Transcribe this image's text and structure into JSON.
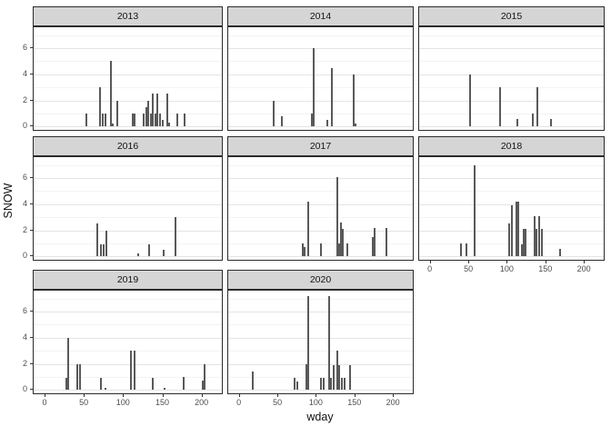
{
  "labels": {
    "x_axis_title": "wday",
    "y_axis_title": "SNOW"
  },
  "colors": {
    "bar": "#595959",
    "strip_background": "#d5d5d5",
    "panel_border": "#2b2b2b",
    "grid_major": "#e4e4e4",
    "grid_minor": "#f3f3f3",
    "tick_text": "#4d4d4d"
  },
  "chart_data": {
    "type": "bar",
    "title": "",
    "xlabel": "wday",
    "ylabel": "SNOW",
    "legend": "none",
    "grid": "horizontal major at 0,2,4,6 and minor at 1,3,5,7; no vertical gridlines",
    "x_ticks": [
      0,
      50,
      100,
      150,
      200
    ],
    "y_ticks": [
      0,
      2,
      4,
      6
    ],
    "xlim": [
      -15,
      227
    ],
    "ylim": [
      -0.4,
      7.6
    ],
    "facet_layout": "3 columns x 3 rows, facet strip on top of each panel, last cell empty",
    "facets": [
      {
        "year": "2013",
        "row": 0,
        "col": 0,
        "bars": [
          [
            52,
            1
          ],
          [
            69,
            3
          ],
          [
            73,
            1
          ],
          [
            76,
            1
          ],
          [
            83.5,
            5
          ],
          [
            86,
            0.2
          ],
          [
            92,
            2
          ],
          [
            111,
            1
          ],
          [
            114,
            1
          ],
          [
            125,
            1
          ],
          [
            128,
            1.5
          ],
          [
            131,
            2
          ],
          [
            134,
            1
          ],
          [
            137,
            2.5
          ],
          [
            140,
            1
          ],
          [
            142.5,
            2.5
          ],
          [
            146,
            1
          ],
          [
            149,
            0.5
          ],
          [
            155,
            2.5
          ],
          [
            157.5,
            0.3
          ],
          [
            168,
            1
          ],
          [
            177,
            1
          ]
        ]
      },
      {
        "year": "2014",
        "row": 0,
        "col": 1,
        "bars": [
          [
            44,
            2
          ],
          [
            54,
            0.8
          ],
          [
            93,
            1
          ],
          [
            95.5,
            6
          ],
          [
            114,
            0.5
          ],
          [
            120,
            4.5
          ],
          [
            148,
            4
          ],
          [
            150.5,
            0.25
          ]
        ]
      },
      {
        "year": "2015",
        "row": 0,
        "col": 2,
        "bars": [
          [
            51,
            4
          ],
          [
            90,
            3
          ],
          [
            113,
            0.6
          ],
          [
            133,
            1
          ],
          [
            138,
            3
          ],
          [
            156,
            0.6
          ]
        ]
      },
      {
        "year": "2016",
        "row": 1,
        "col": 0,
        "bars": [
          [
            66,
            2.5
          ],
          [
            71,
            0.9
          ],
          [
            74,
            0.9
          ],
          [
            78,
            2
          ],
          [
            118,
            0.2
          ],
          [
            132,
            0.9
          ],
          [
            150,
            0.5
          ],
          [
            165,
            3
          ]
        ]
      },
      {
        "year": "2017",
        "row": 1,
        "col": 1,
        "bars": [
          [
            82,
            1
          ],
          [
            84,
            0.75
          ],
          [
            89,
            4.2
          ],
          [
            105,
            1
          ],
          [
            127,
            6.1
          ],
          [
            129,
            1
          ],
          [
            131.5,
            2.6
          ],
          [
            133.5,
            2.1
          ],
          [
            139,
            1
          ],
          [
            172.5,
            1.5
          ],
          [
            174.5,
            2.2
          ],
          [
            190,
            2.2
          ]
        ]
      },
      {
        "year": "2018",
        "row": 1,
        "col": 2,
        "bars": [
          [
            39,
            1
          ],
          [
            46,
            1
          ],
          [
            57,
            7
          ],
          [
            102,
            2.5
          ],
          [
            105,
            3.9
          ],
          [
            111,
            4.2
          ],
          [
            114,
            4.2
          ],
          [
            118,
            0.9
          ],
          [
            120.5,
            2.1
          ],
          [
            123,
            2.1
          ],
          [
            134.5,
            3.1
          ],
          [
            137,
            2.1
          ],
          [
            141,
            3.1
          ],
          [
            144,
            2.1
          ],
          [
            168,
            0.55
          ]
        ]
      },
      {
        "year": "2019",
        "row": 2,
        "col": 0,
        "bars": [
          [
            27,
            0.9
          ],
          [
            29.5,
            4
          ],
          [
            41,
            2
          ],
          [
            43.5,
            2
          ],
          [
            71,
            0.9
          ],
          [
            76,
            0.15
          ],
          [
            109,
            3
          ],
          [
            113,
            3
          ],
          [
            136.5,
            0.9
          ],
          [
            151.5,
            0.15
          ],
          [
            176,
            1
          ],
          [
            200,
            0.7
          ],
          [
            203,
            2
          ]
        ]
      },
      {
        "year": "2020",
        "row": 2,
        "col": 1,
        "bars": [
          [
            16.5,
            1.4
          ],
          [
            71,
            0.9
          ],
          [
            74.5,
            0.65
          ],
          [
            87,
            2
          ],
          [
            88.5,
            7.2
          ],
          [
            105,
            0.9
          ],
          [
            108.5,
            0.9
          ],
          [
            115.5,
            7.2
          ],
          [
            118,
            0.9
          ],
          [
            121.5,
            1.9
          ],
          [
            126.5,
            3
          ],
          [
            129.5,
            1.9
          ],
          [
            132,
            0.9
          ],
          [
            135.5,
            0.9
          ],
          [
            143,
            1.9
          ]
        ]
      }
    ]
  }
}
